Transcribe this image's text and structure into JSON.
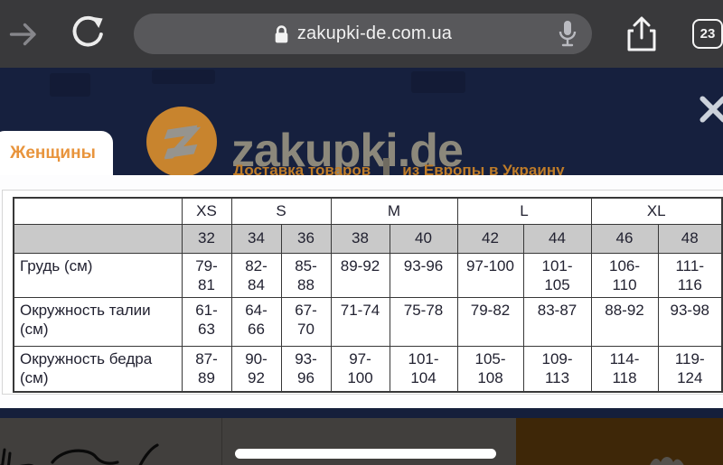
{
  "browser": {
    "url": "zakupki-de.com.ua",
    "tab_count": "23"
  },
  "site": {
    "logo_text": "zakupki.de",
    "tagline_left": "Доставка товаров",
    "tagline_right": "из Европы в Украину",
    "category_tab": "Женщины"
  },
  "size_table": {
    "corner": "",
    "size_groups": [
      {
        "label": "XS",
        "span": 1
      },
      {
        "label": "S",
        "span": 2
      },
      {
        "label": "M",
        "span": 2
      },
      {
        "label": "L",
        "span": 2
      },
      {
        "label": "XL",
        "span": 2
      }
    ],
    "numeric_sizes": [
      "32",
      "34",
      "36",
      "38",
      "40",
      "42",
      "44",
      "46",
      "48"
    ],
    "rows": [
      {
        "label": "Грудь (см)",
        "values": [
          "79-81",
          "82-84",
          "85-88",
          "89-92",
          "93-96",
          "97-100",
          "101-105",
          "106-110",
          "111-116"
        ]
      },
      {
        "label": "Окружность талии (см)",
        "values": [
          "61-63",
          "64-66",
          "67-70",
          "71-74",
          "75-78",
          "79-82",
          "83-87",
          "88-92",
          "93-98"
        ]
      },
      {
        "label": "Окружность бедра (см)",
        "values": [
          "87-89",
          "90-92",
          "93-96",
          "97-100",
          "101-104",
          "105-108",
          "109-113",
          "114-118",
          "119-124"
        ]
      }
    ]
  },
  "colors": {
    "toolbar_dark": "#39393b",
    "header_navy": "#16203e",
    "accent_orange": "#e8943c",
    "logo_circle_orange": "#c8842e",
    "logo_text_gray": "#8c887b",
    "tagline_orange": "#bf7c28",
    "table_header_gray": "#c9c9c9",
    "table_border": "#383838",
    "bottom_gray": "#413f3d",
    "bottom_brown": "#3e2708"
  }
}
